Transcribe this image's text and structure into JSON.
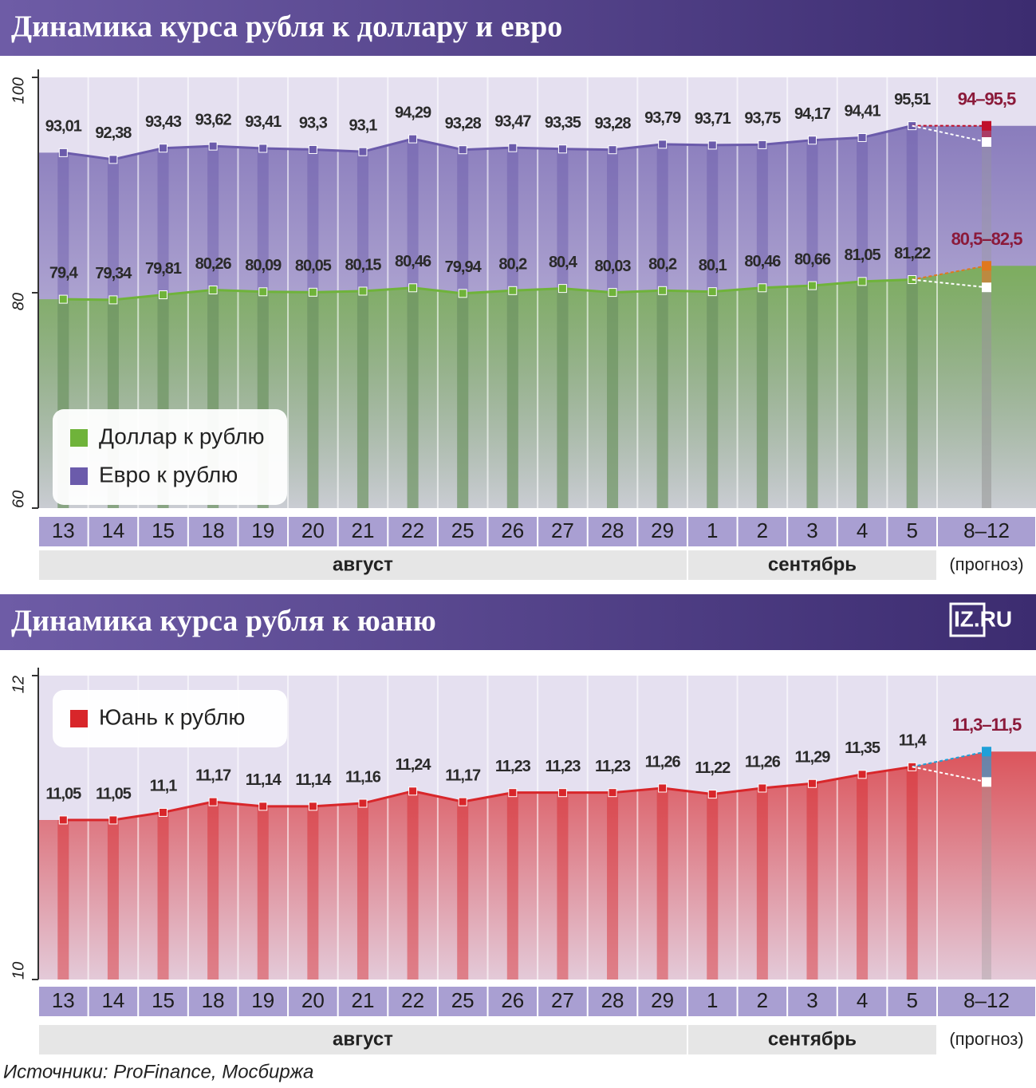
{
  "chart_data": [
    {
      "type": "line",
      "title": "Динамика курса рубля к доллару и евро",
      "categories": [
        "13",
        "14",
        "15",
        "18",
        "19",
        "20",
        "21",
        "22",
        "25",
        "26",
        "27",
        "28",
        "29",
        "1",
        "2",
        "3",
        "4",
        "5",
        "8–12"
      ],
      "months": [
        "август",
        "сентябрь",
        "(прогноз)"
      ],
      "ylim": [
        60,
        100
      ],
      "yticks": [
        60,
        80,
        100
      ],
      "legend": "lower left",
      "series": [
        {
          "name": "Евро к рублю",
          "color": "#6b5bab",
          "values": [
            93.01,
            92.38,
            93.43,
            93.62,
            93.41,
            93.3,
            93.1,
            94.29,
            93.28,
            93.47,
            93.35,
            93.28,
            93.79,
            93.71,
            93.75,
            94.17,
            94.41,
            95.51,
            null
          ],
          "value_labels": [
            "93,01",
            "92,38",
            "93,43",
            "93,62",
            "93,41",
            "93,3",
            "93,1",
            "94,29",
            "93,28",
            "93,47",
            "93,35",
            "93,28",
            "93,79",
            "93,71",
            "93,75",
            "94,17",
            "94,41",
            "95,51",
            null
          ],
          "forecast": {
            "low": 94,
            "high": 95.5,
            "label": "94–95,5",
            "color": "#c0102a"
          }
        },
        {
          "name": "Доллар к рублю",
          "color": "#6fb33a",
          "values": [
            79.4,
            79.34,
            79.81,
            80.26,
            80.09,
            80.05,
            80.15,
            80.46,
            79.94,
            80.2,
            80.4,
            80.03,
            80.2,
            80.1,
            80.46,
            80.66,
            81.05,
            81.22,
            null
          ],
          "value_labels": [
            "79,4",
            "79,34",
            "79,81",
            "80,26",
            "80,09",
            "80,05",
            "80,15",
            "80,46",
            "79,94",
            "80,2",
            "80,4",
            "80,03",
            "80,2",
            "80,1",
            "80,46",
            "80,66",
            "81,05",
            "81,22",
            null
          ],
          "forecast": {
            "low": 80.5,
            "high": 82.5,
            "label": "80,5–82,5",
            "color": "#e0781e"
          }
        }
      ]
    },
    {
      "type": "line",
      "title": "Динамика курса рубля к юаню",
      "categories": [
        "13",
        "14",
        "15",
        "18",
        "19",
        "20",
        "21",
        "22",
        "25",
        "26",
        "27",
        "28",
        "29",
        "1",
        "2",
        "3",
        "4",
        "5",
        "8–12"
      ],
      "months": [
        "август",
        "сентябрь",
        "(прогноз)"
      ],
      "ylim": [
        10,
        12
      ],
      "yticks": [
        10,
        12
      ],
      "legend": "upper left",
      "series": [
        {
          "name": "Юань к рублю",
          "color": "#d8262a",
          "values": [
            11.05,
            11.05,
            11.1,
            11.17,
            11.14,
            11.14,
            11.16,
            11.24,
            11.17,
            11.23,
            11.23,
            11.23,
            11.26,
            11.22,
            11.26,
            11.29,
            11.35,
            11.4,
            null
          ],
          "value_labels": [
            "11,05",
            "11,05",
            "11,1",
            "11,17",
            "11,14",
            "11,14",
            "11,16",
            "11,24",
            "11,17",
            "11,23",
            "11,23",
            "11,23",
            "11,26",
            "11,22",
            "11,26",
            "11,29",
            "11,35",
            "11,4",
            null
          ],
          "forecast": {
            "low": 11.3,
            "high": 11.5,
            "label": "11,3–11,5",
            "color": "#1fa0d8"
          }
        }
      ]
    }
  ],
  "logo": "IZ.RU",
  "source": "Источники: ProFinance, Мосбиржа"
}
